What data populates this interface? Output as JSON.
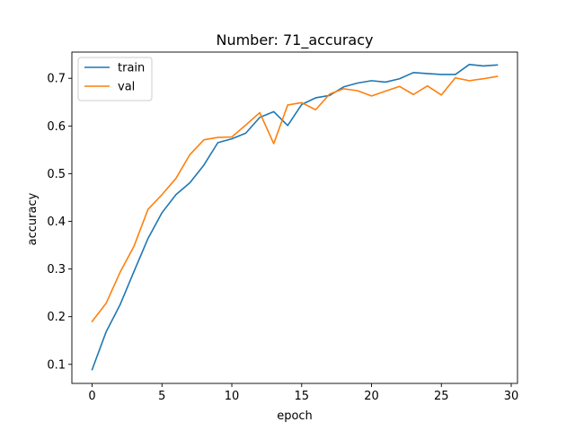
{
  "chart_data": {
    "type": "line",
    "title": "Number: 71_accuracy",
    "xlabel": "epoch",
    "ylabel": "accuracy",
    "xlim": [
      -1.45,
      30.45
    ],
    "ylim": [
      0.06,
      0.755
    ],
    "xticks": [
      0,
      5,
      10,
      15,
      20,
      25,
      30
    ],
    "yticks": [
      0.1,
      0.2,
      0.3,
      0.4,
      0.5,
      0.6,
      0.7
    ],
    "x": [
      0,
      1,
      2,
      3,
      4,
      5,
      6,
      7,
      8,
      9,
      10,
      11,
      12,
      13,
      14,
      15,
      16,
      17,
      18,
      19,
      20,
      21,
      22,
      23,
      24,
      25,
      26,
      27,
      28,
      29
    ],
    "series": [
      {
        "name": "train",
        "color": "#1f77b4",
        "values": [
          0.089,
          0.168,
          0.225,
          0.295,
          0.364,
          0.418,
          0.456,
          0.481,
          0.518,
          0.565,
          0.573,
          0.585,
          0.618,
          0.63,
          0.601,
          0.645,
          0.659,
          0.664,
          0.682,
          0.69,
          0.695,
          0.692,
          0.699,
          0.712,
          0.71,
          0.708,
          0.708,
          0.729,
          0.726,
          0.728
        ]
      },
      {
        "name": "val",
        "color": "#ff7f0e",
        "values": [
          0.19,
          0.228,
          0.293,
          0.348,
          0.425,
          0.456,
          0.49,
          0.54,
          0.571,
          0.576,
          0.577,
          0.602,
          0.628,
          0.563,
          0.644,
          0.649,
          0.634,
          0.667,
          0.678,
          0.674,
          0.663,
          0.673,
          0.683,
          0.666,
          0.684,
          0.665,
          0.701,
          0.695,
          0.699,
          0.704
        ]
      }
    ],
    "legend": "upper-left",
    "grid": false
  }
}
